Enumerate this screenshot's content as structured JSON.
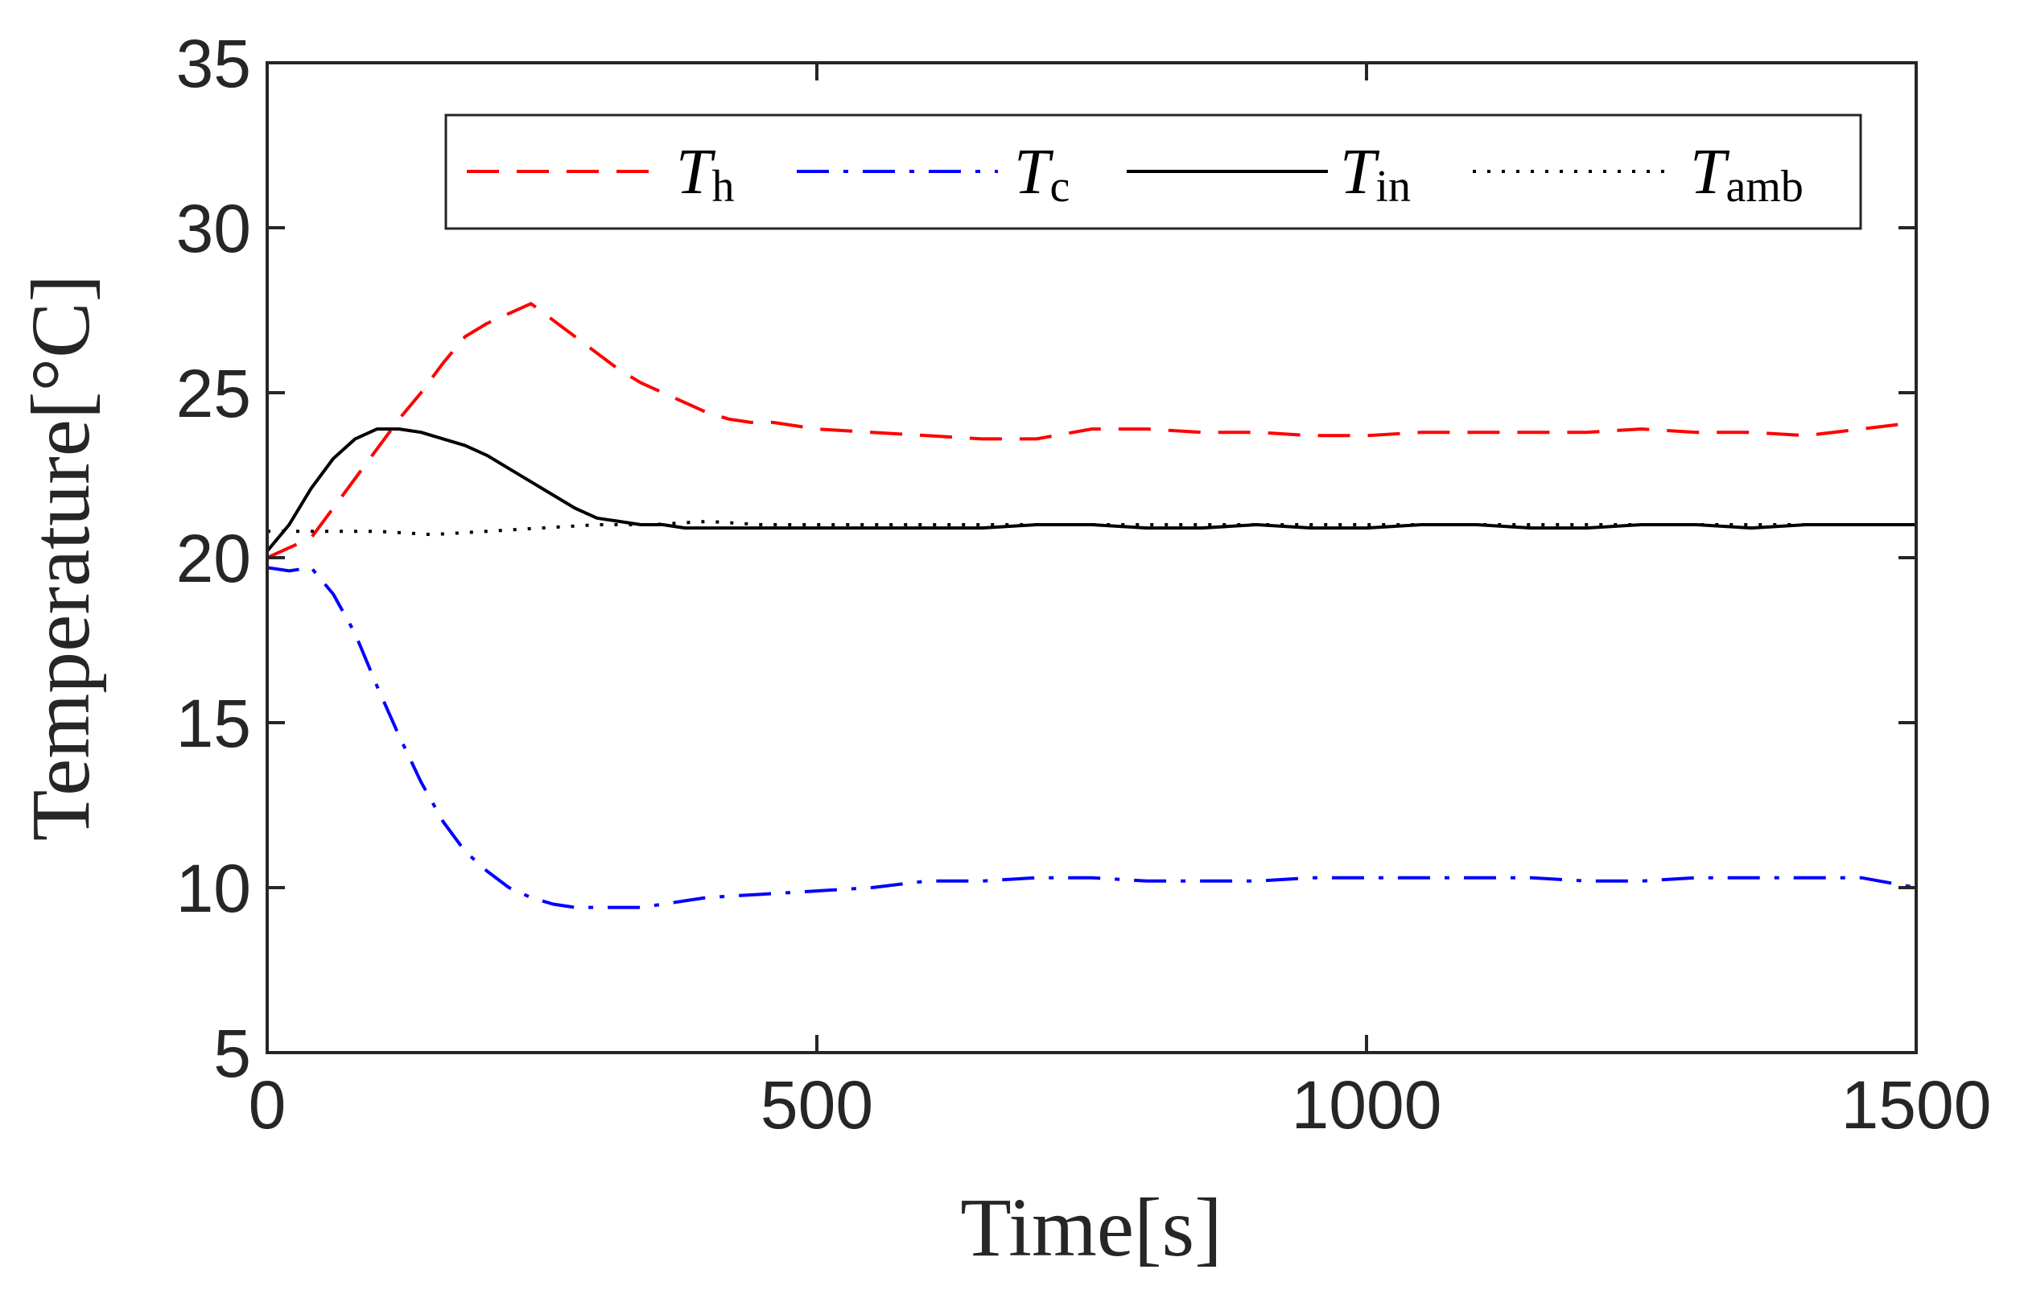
{
  "chart_data": {
    "type": "line",
    "title": "",
    "xlabel": "Time[s]",
    "ylabel": "Temperature[°C]",
    "xlim": [
      0,
      1500
    ],
    "ylim": [
      5,
      35
    ],
    "xticks": [
      0,
      500,
      1000,
      1500
    ],
    "yticks": [
      5,
      10,
      15,
      20,
      25,
      30,
      35
    ],
    "xtick_labels": [
      "0",
      "500",
      "1000",
      "1500"
    ],
    "ytick_labels": [
      "5",
      "10",
      "15",
      "20",
      "25",
      "30",
      "35"
    ],
    "grid": false,
    "legend_position": "top",
    "legend_orientation": "horizontal",
    "series": [
      {
        "name": "T_h",
        "label_main": "T",
        "label_sub": "h",
        "color": "#ff0000",
        "style": "dashed",
        "x": [
          0,
          20,
          40,
          60,
          80,
          100,
          120,
          140,
          160,
          180,
          200,
          220,
          240,
          260,
          280,
          300,
          320,
          340,
          360,
          380,
          400,
          420,
          440,
          460,
          480,
          500,
          550,
          600,
          650,
          700,
          750,
          800,
          850,
          900,
          950,
          1000,
          1050,
          1100,
          1150,
          1200,
          1250,
          1300,
          1350,
          1400,
          1450,
          1500
        ],
        "y": [
          20.0,
          20.3,
          20.6,
          21.5,
          22.4,
          23.3,
          24.2,
          25.0,
          25.9,
          26.7,
          27.1,
          27.4,
          27.7,
          27.2,
          26.7,
          26.2,
          25.7,
          25.3,
          25.0,
          24.7,
          24.4,
          24.2,
          24.1,
          24.1,
          24.0,
          23.9,
          23.8,
          23.7,
          23.6,
          23.6,
          23.9,
          23.9,
          23.8,
          23.8,
          23.7,
          23.7,
          23.8,
          23.8,
          23.8,
          23.8,
          23.9,
          23.8,
          23.8,
          23.7,
          23.9,
          24.1
        ]
      },
      {
        "name": "T_c",
        "label_main": "T",
        "label_sub": "c",
        "color": "#0000ff",
        "style": "dashdot",
        "x": [
          0,
          20,
          40,
          60,
          80,
          100,
          120,
          140,
          160,
          180,
          200,
          220,
          240,
          260,
          280,
          300,
          320,
          340,
          360,
          380,
          400,
          450,
          500,
          550,
          600,
          650,
          700,
          750,
          800,
          850,
          900,
          950,
          1000,
          1050,
          1100,
          1150,
          1200,
          1250,
          1300,
          1350,
          1400,
          1450,
          1500
        ],
        "y": [
          19.7,
          19.6,
          19.7,
          18.9,
          17.7,
          16.1,
          14.6,
          13.2,
          12.0,
          11.1,
          10.5,
          10.0,
          9.7,
          9.5,
          9.4,
          9.4,
          9.4,
          9.4,
          9.5,
          9.6,
          9.7,
          9.8,
          9.9,
          10.0,
          10.2,
          10.2,
          10.3,
          10.3,
          10.2,
          10.2,
          10.2,
          10.3,
          10.3,
          10.3,
          10.3,
          10.3,
          10.2,
          10.2,
          10.3,
          10.3,
          10.3,
          10.3,
          10.0
        ]
      },
      {
        "name": "T_in",
        "label_main": "T",
        "label_sub": "in",
        "color": "#000000",
        "style": "solid",
        "x": [
          0,
          20,
          40,
          60,
          80,
          100,
          120,
          140,
          160,
          180,
          200,
          220,
          240,
          260,
          280,
          300,
          320,
          340,
          360,
          380,
          400,
          450,
          500,
          550,
          600,
          650,
          700,
          750,
          800,
          850,
          900,
          950,
          1000,
          1050,
          1100,
          1150,
          1200,
          1250,
          1300,
          1350,
          1400,
          1450,
          1500
        ],
        "y": [
          20.2,
          21.0,
          22.1,
          23.0,
          23.6,
          23.9,
          23.9,
          23.8,
          23.6,
          23.4,
          23.1,
          22.7,
          22.3,
          21.9,
          21.5,
          21.2,
          21.1,
          21.0,
          21.0,
          20.9,
          20.9,
          20.9,
          20.9,
          20.9,
          20.9,
          20.9,
          21.0,
          21.0,
          20.9,
          20.9,
          21.0,
          20.9,
          20.9,
          21.0,
          21.0,
          20.9,
          20.9,
          21.0,
          21.0,
          20.9,
          21.0,
          21.0,
          21.0
        ]
      },
      {
        "name": "T_amb",
        "label_main": "T",
        "label_sub": "amb",
        "color": "#000000",
        "style": "dotted",
        "x": [
          0,
          50,
          100,
          150,
          200,
          250,
          300,
          350,
          400,
          450,
          500,
          600,
          700,
          800,
          900,
          1000,
          1100,
          1200,
          1300,
          1400,
          1500
        ],
        "y": [
          20.8,
          20.8,
          20.8,
          20.7,
          20.8,
          20.9,
          21.0,
          21.0,
          21.1,
          21.0,
          21.0,
          21.0,
          21.0,
          21.0,
          21.0,
          21.0,
          21.0,
          21.0,
          21.0,
          21.0,
          21.0
        ]
      }
    ]
  }
}
